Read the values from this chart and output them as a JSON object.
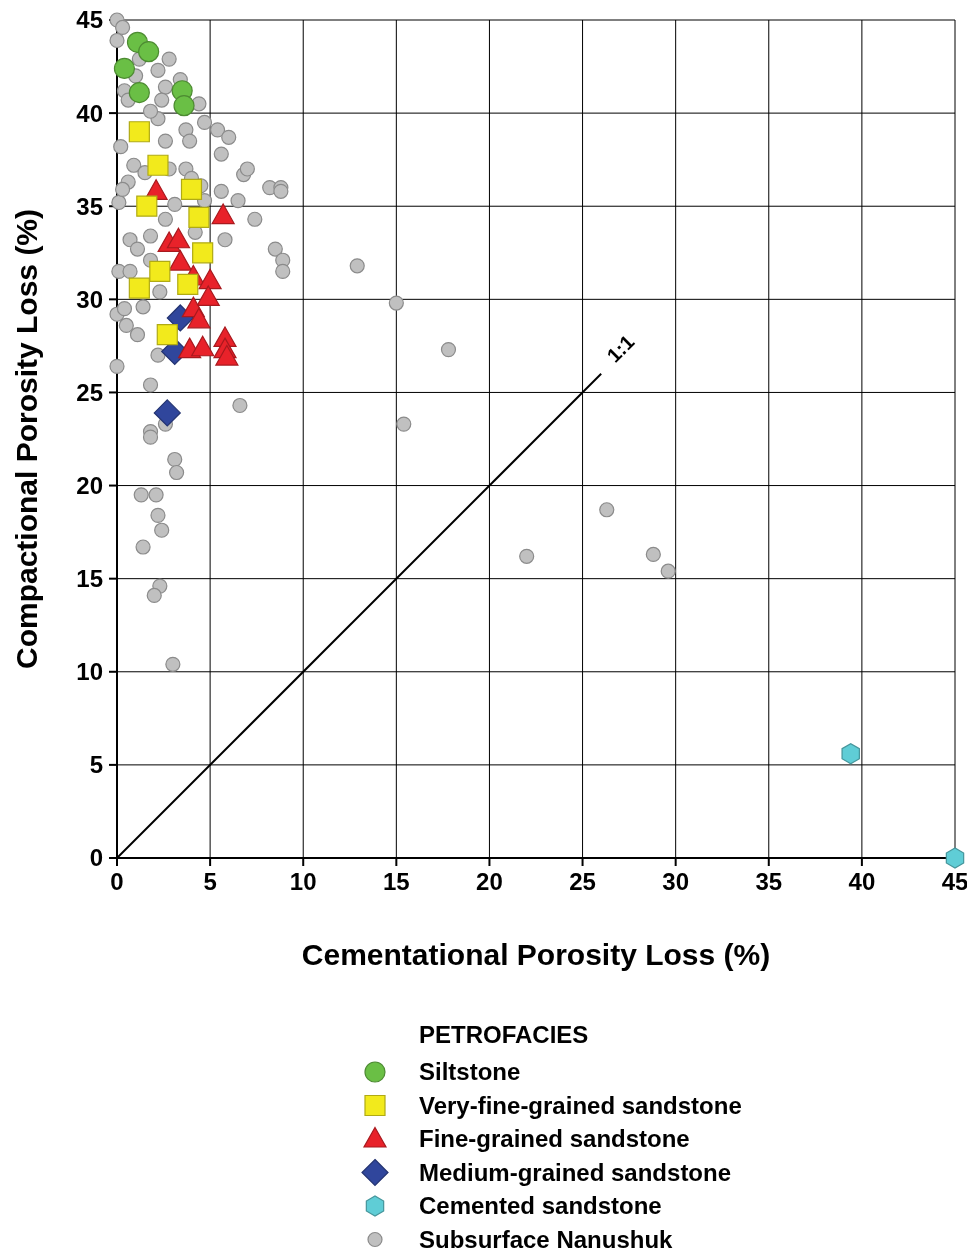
{
  "chart_data": {
    "type": "scatter",
    "xlabel": "Cementational Porosity Loss (%)",
    "ylabel": "Compactional Porosity Loss (%)",
    "legend_title": "PETROFACIES",
    "legend": "bottom",
    "grid": true,
    "xlim": [
      0,
      45
    ],
    "ylim": [
      0,
      45
    ],
    "xticks": [
      0,
      5,
      10,
      15,
      20,
      25,
      30,
      35,
      40,
      45
    ],
    "yticks": [
      0,
      5,
      10,
      15,
      20,
      25,
      30,
      35,
      40,
      45
    ],
    "series": [
      {
        "name": "Siltstone",
        "color": "#6abf45",
        "marker": "circle",
        "x": [
          1.1,
          1.7,
          0.4,
          1.2,
          3.5,
          3.6
        ],
        "values": [
          43.8,
          43.3,
          42.4,
          41.1,
          41.2,
          40.4
        ]
      },
      {
        "name": "Very-fine-grained sandstone",
        "color": "#f2ea1c",
        "marker": "square",
        "x": [
          1.2,
          2.2,
          1.6,
          4.0,
          4.4,
          4.6,
          2.3,
          3.8,
          1.2,
          2.7
        ],
        "values": [
          39.0,
          37.2,
          35.0,
          35.9,
          34.4,
          32.5,
          31.5,
          30.8,
          30.6,
          28.1
        ]
      },
      {
        "name": "Fine-grained sandstone",
        "color": "#e8222a",
        "marker": "triangle",
        "x": [
          2.1,
          5.7,
          2.8,
          3.3,
          3.4,
          4.1,
          5.0,
          4.9,
          4.1,
          4.4,
          5.8,
          5.8,
          5.9,
          3.9,
          4.6
        ],
        "values": [
          35.8,
          34.5,
          33.0,
          33.2,
          32.0,
          31.2,
          31.0,
          30.1,
          29.5,
          28.9,
          27.9,
          27.3,
          26.9,
          27.3,
          27.4
        ]
      },
      {
        "name": "Medium-grained sandstone",
        "color": "#30469c",
        "marker": "diamond",
        "x": [
          3.4,
          3.1,
          2.7
        ],
        "values": [
          29.0,
          27.2,
          23.9
        ]
      },
      {
        "name": "Cemented sandstone",
        "color": "#5fcdd6",
        "x": [
          39.4,
          45
        ],
        "values": [
          5.6,
          0
        ]
      },
      {
        "name": "Subsurface Nanushuk",
        "color": "#c0c0c0",
        "marker": "circle",
        "x": [
          12.9,
          15.0,
          17.8,
          15.4,
          26.3,
          22.0,
          28.8,
          29.6,
          6.6,
          1.8,
          2.6,
          1.8,
          1.8,
          3.1,
          3.2,
          1.3,
          2.1,
          2.2,
          2.4,
          1.4,
          2.3,
          2.0,
          3.0,
          0,
          0,
          2.2,
          1.1,
          0.5,
          0.1,
          0.7,
          0.4,
          1.4,
          8.2,
          8.8,
          8.8,
          8.5,
          8.9,
          8.9,
          6.8,
          7.0,
          7.4,
          6.5,
          5.6,
          5.8,
          5.4,
          6.0,
          5.6,
          4.7,
          4.4,
          3.7,
          3.9,
          2.6,
          2.2,
          0,
          0.3,
          0,
          0.4,
          1.0,
          2.2,
          2.6,
          2.4,
          1.8,
          0.6,
          0.2,
          0.9,
          0.6,
          0.1,
          0.3,
          0.7,
          1.1,
          1.8,
          1.5,
          2.8,
          3.7,
          4.0,
          4.5,
          4.7,
          3.1,
          2.6,
          4.2,
          2.3,
          1.8,
          2.8,
          3.4,
          1.2
        ],
        "values": [
          31.8,
          29.8,
          27.3,
          23.3,
          18.7,
          16.2,
          16.3,
          15.4,
          24.3,
          25.4,
          23.3,
          22.9,
          22.6,
          21.4,
          20.7,
          19.5,
          19.5,
          18.4,
          17.6,
          16.7,
          14.6,
          14.1,
          10.4,
          26.4,
          29.2,
          27.0,
          28.1,
          28.6,
          31.5,
          31.5,
          29.5,
          29.6,
          36.0,
          36.0,
          35.8,
          32.7,
          32.1,
          31.5,
          36.7,
          37.0,
          34.3,
          35.3,
          35.8,
          33.2,
          39.1,
          38.7,
          37.8,
          39.5,
          40.5,
          39.1,
          38.5,
          38.5,
          39.7,
          45.0,
          44.6,
          43.9,
          41.2,
          42.0,
          42.3,
          41.4,
          40.7,
          40.1,
          40.7,
          38.2,
          37.2,
          36.3,
          35.2,
          35.9,
          33.2,
          32.7,
          33.4,
          36.8,
          37.0,
          37.0,
          36.5,
          36.1,
          35.3,
          35.1,
          34.3,
          33.6,
          30.4,
          32.1,
          42.9,
          41.8,
          42.9
        ]
      },
      {
        "name": "1:1",
        "type": "line",
        "color": "#000000",
        "x": [
          0,
          26
        ],
        "values": [
          0,
          26
        ]
      }
    ]
  }
}
